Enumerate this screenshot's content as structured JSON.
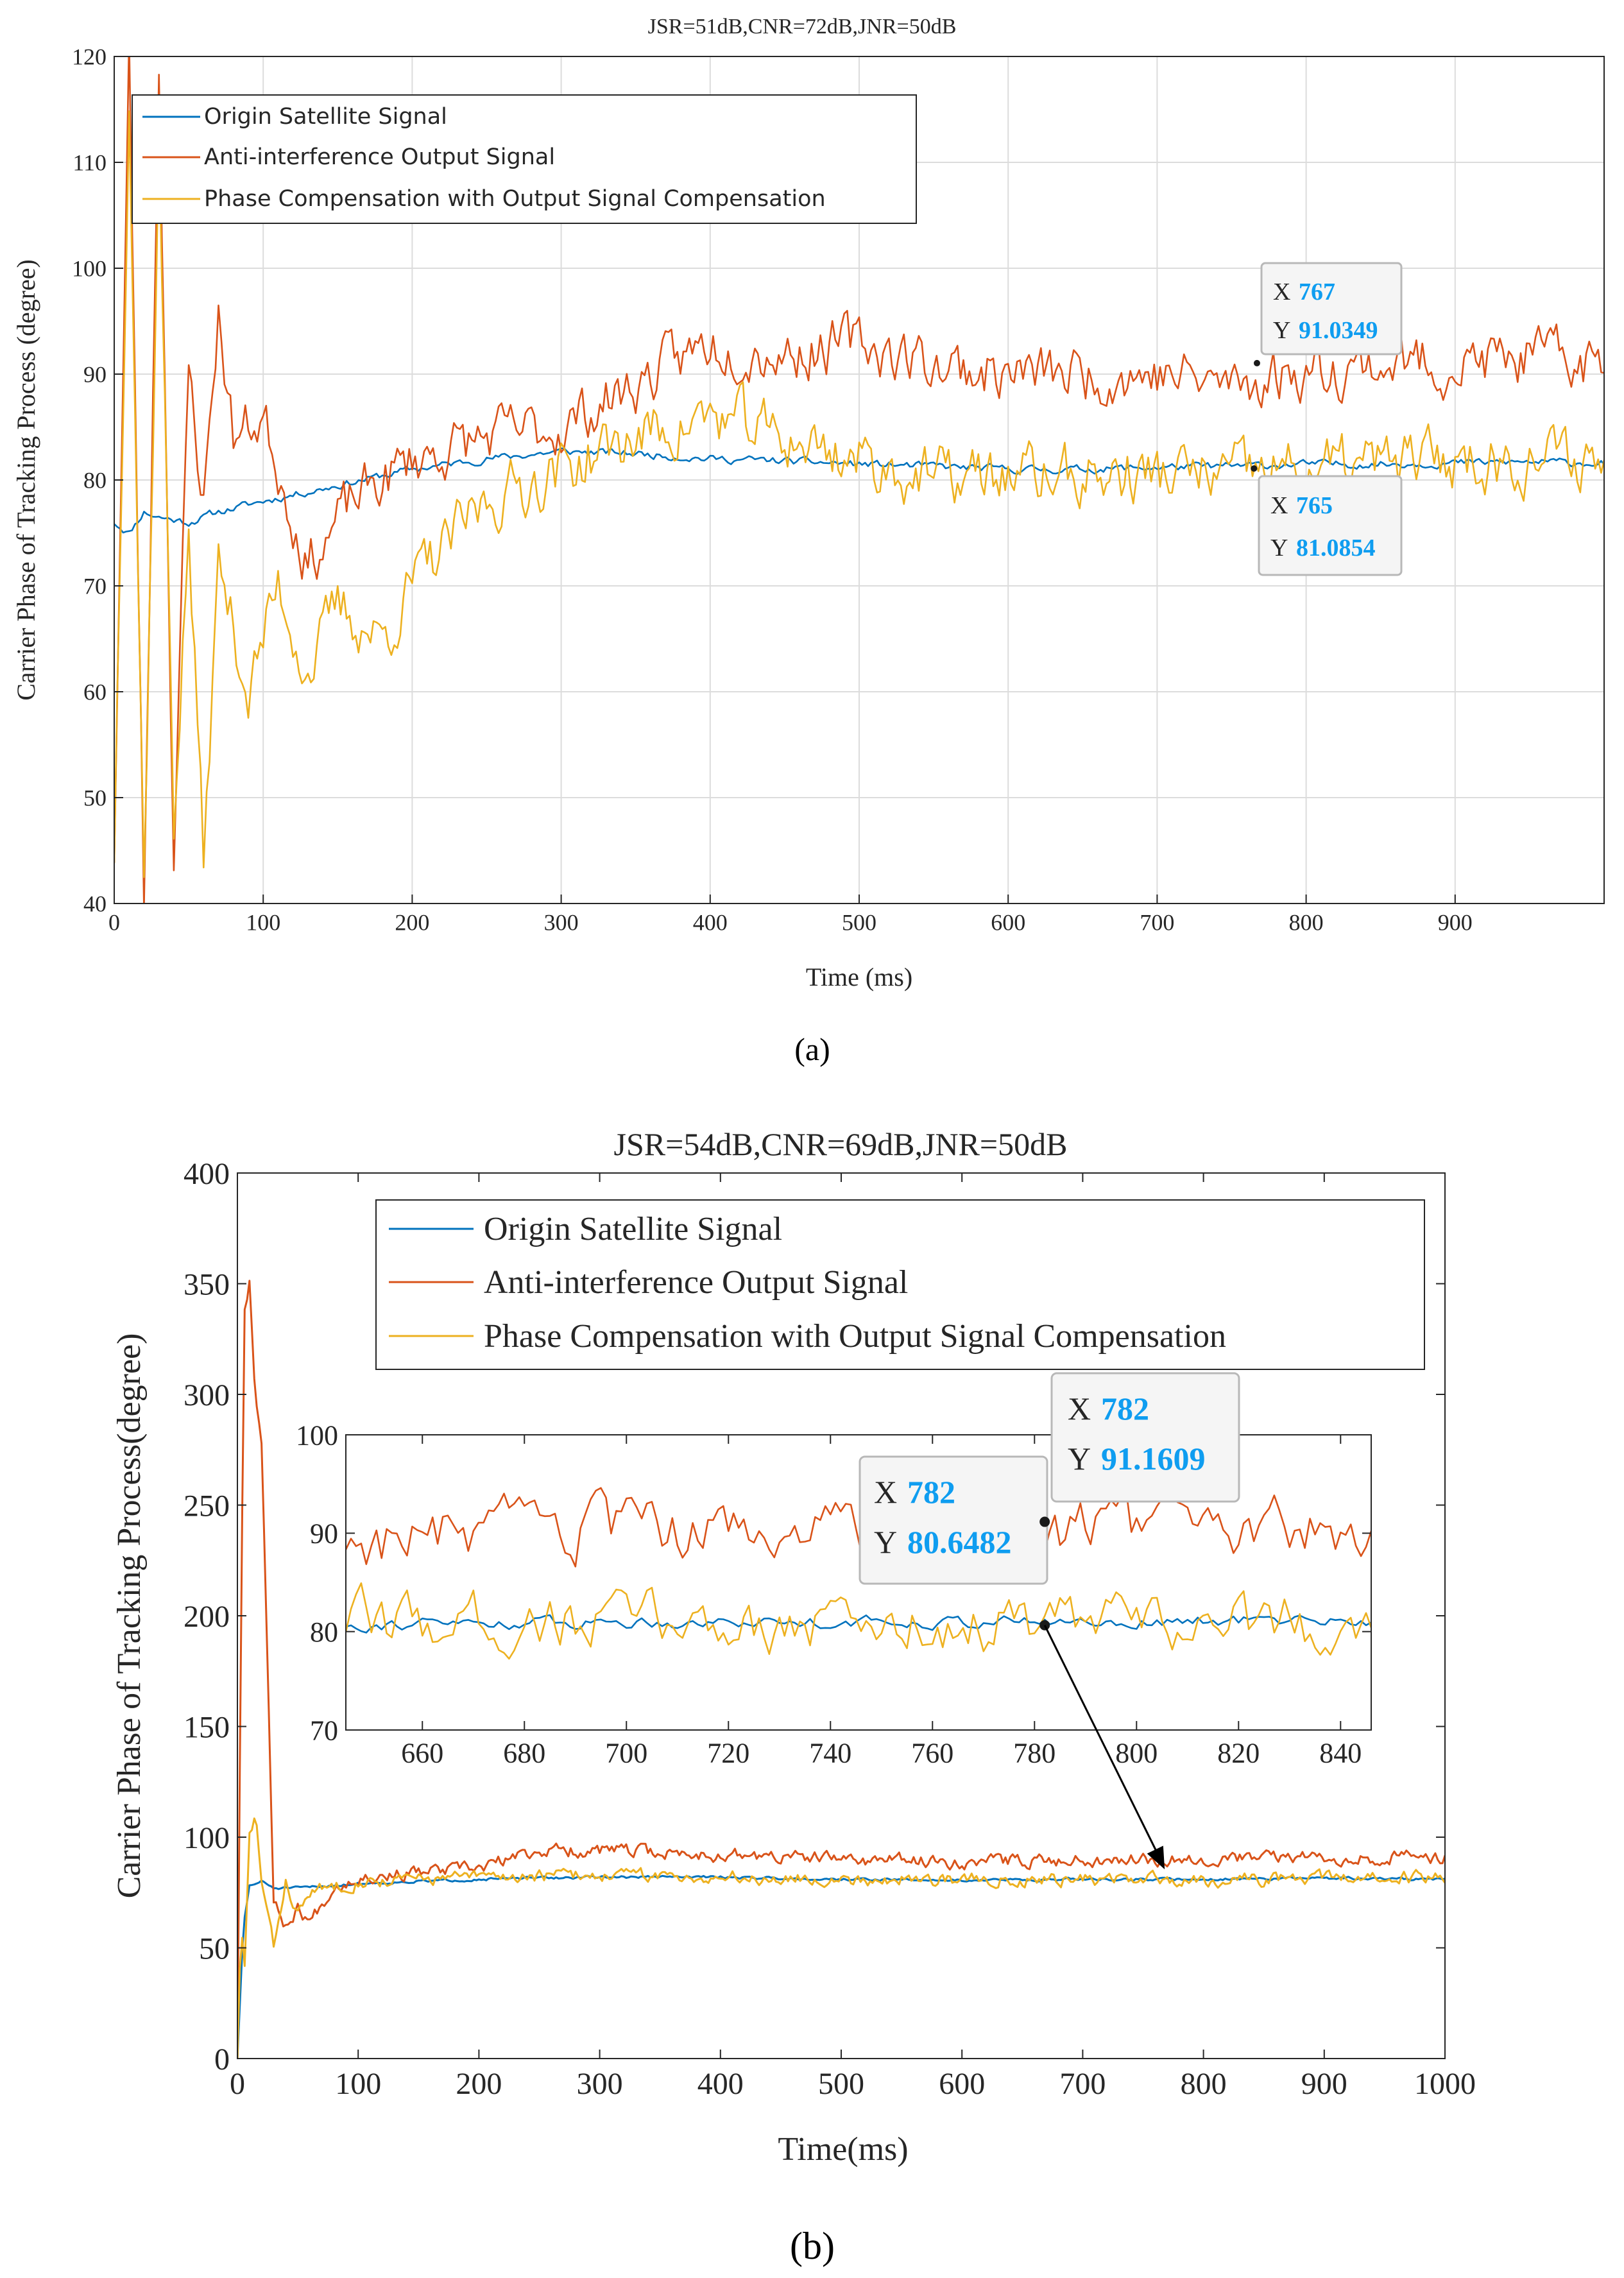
{
  "chart_data": [
    {
      "panel": "a",
      "type": "line",
      "title": "JSR=51dB,CNR=72dB,JNR=50dB",
      "xlabel": "Time (ms)",
      "ylabel": "Carrier Phase of Tracking Process (degree)",
      "xlim": [
        0,
        1000
      ],
      "ylim": [
        40,
        120
      ],
      "xticks": [
        0,
        100,
        200,
        300,
        400,
        500,
        600,
        700,
        800,
        900
      ],
      "yticks": [
        40,
        50,
        60,
        70,
        80,
        90,
        100,
        110,
        120
      ],
      "legend_location": "top-left",
      "caption": "(a)",
      "series": [
        {
          "name": "Origin Satellite Signal",
          "color": "#0072bd",
          "x": [
            0,
            10,
            20,
            30,
            50,
            70,
            100,
            150,
            200,
            250,
            300,
            350,
            400,
            450,
            500,
            550,
            600,
            650,
            700,
            750,
            800,
            850,
            900,
            950,
            1000
          ],
          "values": [
            76,
            75,
            77,
            76.5,
            76,
            77,
            78,
            79.5,
            81,
            82,
            82.7,
            82.5,
            82,
            81.8,
            81.5,
            81.3,
            81,
            81,
            81.2,
            81.3,
            81.5,
            81.5,
            81.6,
            81.7,
            81.6
          ],
          "noise": 0.3
        },
        {
          "name": "Anti-interference Output Signal",
          "color": "#d95319",
          "x": [
            0,
            10,
            20,
            30,
            40,
            50,
            60,
            70,
            80,
            100,
            130,
            160,
            200,
            250,
            300,
            350,
            400,
            450,
            500,
            550,
            600,
            650,
            700,
            750,
            800,
            850,
            900,
            950,
            1000
          ],
          "values": [
            45,
            120,
            40,
            120,
            45,
            90,
            78,
            96,
            84,
            86,
            72,
            78,
            82,
            84,
            85,
            89,
            93,
            92,
            93,
            91,
            90,
            90,
            90,
            89,
            90.5,
            91,
            91,
            91.5,
            91
          ],
          "noise": 2.2
        },
        {
          "name": "Phase Compensation with Output Signal Compensation",
          "color": "#edb120",
          "x": [
            0,
            10,
            20,
            30,
            40,
            50,
            60,
            70,
            90,
            110,
            130,
            150,
            180,
            200,
            250,
            300,
            350,
            400,
            450,
            500,
            550,
            600,
            650,
            700,
            750,
            800,
            850,
            900,
            950,
            1000
          ],
          "values": [
            45,
            118,
            42,
            112,
            48,
            75,
            44,
            72,
            60,
            70,
            62,
            68,
            65,
            70,
            78,
            81,
            84,
            86,
            84,
            82,
            80,
            80.5,
            80.3,
            80.5,
            80.4,
            81,
            81.5,
            82,
            82,
            82
          ],
          "noise": 2.4
        }
      ],
      "annotations": [
        {
          "x_label": "X",
          "x": "767",
          "y_label": "Y",
          "y": "91.0349"
        },
        {
          "x_label": "X",
          "x": "765",
          "y_label": "Y",
          "y": "81.0854"
        }
      ]
    },
    {
      "panel": "b",
      "type": "line",
      "title": "JSR=54dB,CNR=69dB,JNR=50dB",
      "xlabel": "Time(ms)",
      "ylabel": "Carrier Phase of Tracking Process(degree)",
      "xlim": [
        0,
        1000
      ],
      "ylim": [
        0,
        400
      ],
      "xticks": [
        0,
        100,
        200,
        300,
        400,
        500,
        600,
        700,
        800,
        900,
        1000
      ],
      "yticks": [
        0,
        50,
        100,
        150,
        200,
        250,
        300,
        350,
        400
      ],
      "legend_location": "top-right",
      "caption": "(b)",
      "series": [
        {
          "name": "Origin Satellite Signal",
          "color": "#0072bd",
          "x": [
            0,
            5,
            10,
            20,
            30,
            50,
            100,
            150,
            200,
            300,
            400,
            500,
            600,
            700,
            800,
            900,
            1000
          ],
          "values": [
            0,
            60,
            78,
            80,
            77,
            77,
            79,
            80,
            81,
            82,
            82,
            81,
            80.5,
            81,
            81,
            81.5,
            81
          ],
          "noise": 0.5
        },
        {
          "name": "Anti-interference Output Signal",
          "color": "#d95319",
          "x": [
            0,
            3,
            6,
            10,
            15,
            20,
            25,
            30,
            40,
            50,
            60,
            80,
            100,
            150,
            200,
            250,
            300,
            400,
            500,
            600,
            700,
            800,
            900,
            1000
          ],
          "values": [
            0,
            200,
            340,
            352,
            300,
            280,
            180,
            70,
            60,
            68,
            62,
            78,
            82,
            84,
            86,
            94,
            94,
            92,
            90,
            89,
            90,
            90.5,
            91,
            91
          ],
          "noise": 2.5
        },
        {
          "name": "Phase Compensation with Output Signal Compensation",
          "color": "#edb120",
          "x": [
            0,
            3,
            6,
            10,
            15,
            20,
            30,
            40,
            50,
            60,
            80,
            100,
            150,
            200,
            300,
            400,
            500,
            600,
            700,
            800,
            900,
            1000
          ],
          "values": [
            0,
            60,
            40,
            100,
            110,
            80,
            50,
            80,
            65,
            75,
            78,
            80,
            81,
            82,
            83,
            82,
            81,
            81,
            81,
            80.6,
            81.5,
            82
          ],
          "noise": 2.4
        }
      ],
      "inset": {
        "xlim": [
          645,
          846
        ],
        "ylim": [
          70,
          100
        ],
        "xticks": [
          660,
          680,
          700,
          720,
          740,
          760,
          780,
          800,
          820,
          840
        ],
        "yticks": [
          70,
          80,
          90,
          100
        ]
      },
      "annotations": [
        {
          "x_label": "X",
          "x": "782",
          "y_label": "Y",
          "y": "91.1609"
        },
        {
          "x_label": "X",
          "x": "782",
          "y_label": "Y",
          "y": "80.6482"
        }
      ]
    }
  ]
}
